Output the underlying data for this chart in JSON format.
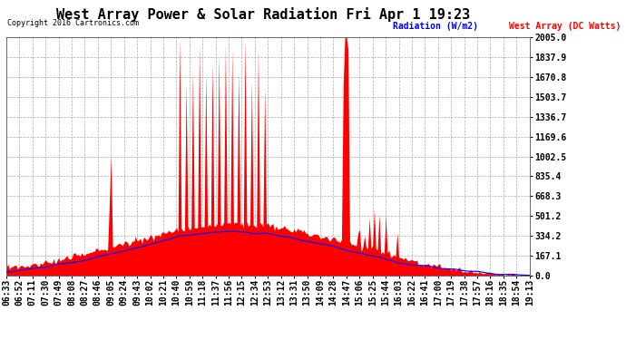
{
  "title": "West Array Power & Solar Radiation Fri Apr 1 19:23",
  "copyright": "Copyright 2016 Cartronics.com",
  "legend_label_blue": "Radiation (W/m2)",
  "legend_label_red": "West Array (DC Watts)",
  "ytick_values": [
    0.0,
    167.1,
    334.2,
    501.2,
    668.3,
    835.4,
    1002.5,
    1169.6,
    1336.7,
    1503.7,
    1670.8,
    1837.9,
    2005.0
  ],
  "ymax": 2005.0,
  "x_labels": [
    "06:33",
    "06:52",
    "07:11",
    "07:30",
    "07:49",
    "08:08",
    "08:27",
    "08:46",
    "09:05",
    "09:24",
    "09:43",
    "10:02",
    "10:21",
    "10:40",
    "10:59",
    "11:18",
    "11:37",
    "11:56",
    "12:15",
    "12:34",
    "12:53",
    "13:12",
    "13:31",
    "13:50",
    "14:09",
    "14:28",
    "14:47",
    "15:06",
    "15:25",
    "15:44",
    "16:03",
    "16:22",
    "16:41",
    "17:00",
    "17:19",
    "17:38",
    "17:57",
    "18:16",
    "18:35",
    "18:54",
    "19:13"
  ],
  "bg_color": "#ffffff",
  "grid_color": "#aaaaaa",
  "title_fontsize": 11,
  "tick_fontsize": 7,
  "legend_fontsize": 7
}
